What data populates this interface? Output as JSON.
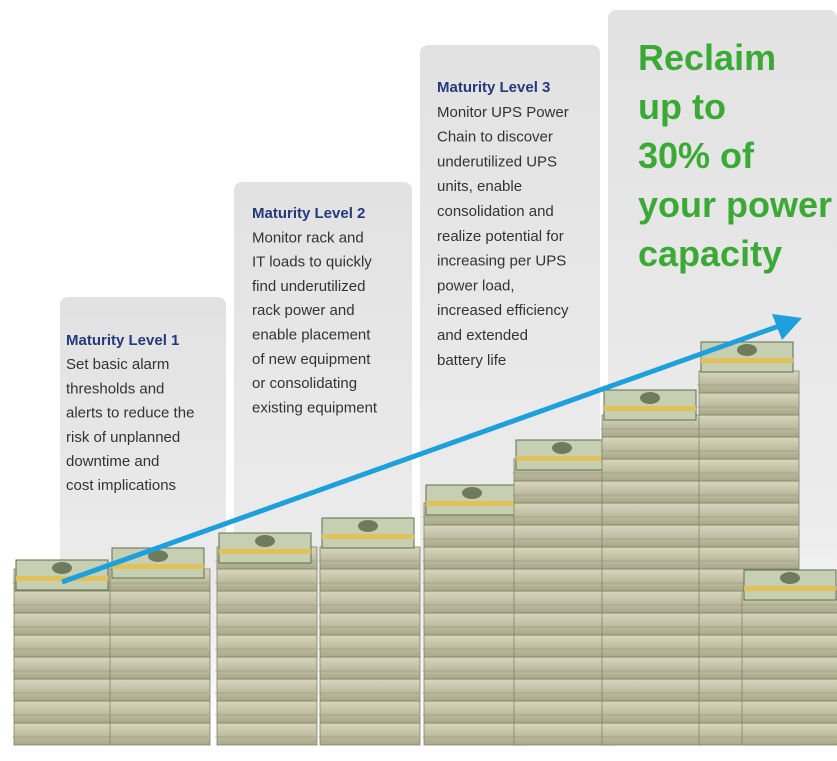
{
  "levels": [
    {
      "title": "Maturity Level 1",
      "lines": [
        "Set basic alarm",
        "thresholds and",
        "alerts to reduce the",
        "risk of unplanned",
        "downtime and",
        "cost implications"
      ]
    },
    {
      "title": "Maturity Level 2",
      "lines": [
        "Monitor rack and",
        "IT loads to quickly",
        "find underutilized",
        "rack power and",
        "enable placement",
        "of new equipment",
        "or consolidating",
        "existing equipment"
      ]
    },
    {
      "title": "Maturity Level 3",
      "lines": [
        "Monitor UPS Power",
        "Chain to discover",
        "underutilized UPS",
        "units, enable",
        "consolidation and",
        "realize potential for",
        "increasing per UPS",
        "power load,",
        "increased efficiency",
        "and extended",
        "battery life"
      ]
    }
  ],
  "headline": [
    "Reclaim",
    "up to",
    "30% of",
    "your power",
    "capacity"
  ]
}
